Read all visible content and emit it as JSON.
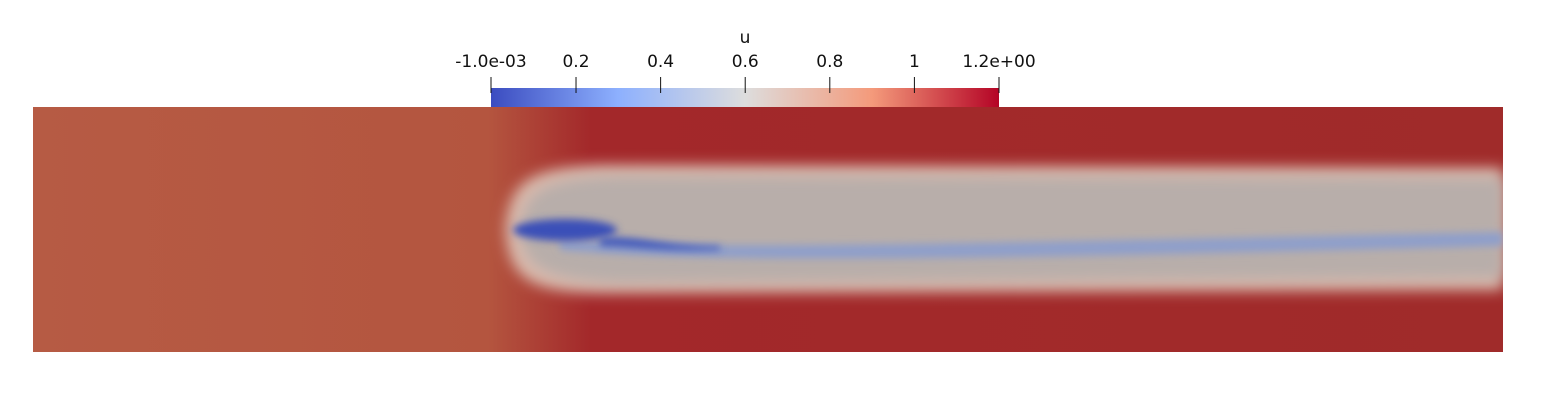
{
  "colorbar": {
    "title": "u",
    "range": [
      -0.001,
      1.2
    ],
    "ticks": [
      {
        "value": -0.001,
        "label": "-1.0e-03"
      },
      0.2,
      0.4,
      0.6,
      0.8,
      1,
      {
        "value": 1.2,
        "label": "1.2e+00"
      }
    ]
  }
}
